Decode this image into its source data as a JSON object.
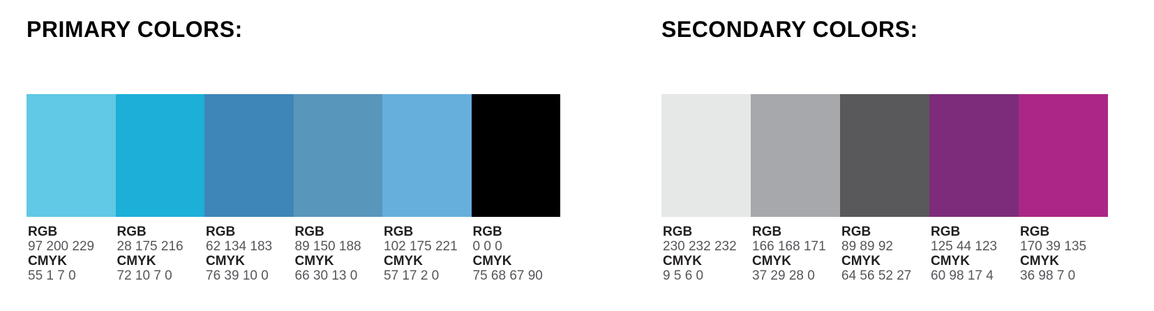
{
  "sections": [
    {
      "title": "PRIMARY COLORS:",
      "rgb_label": "RGB",
      "cmyk_label": "CMYK",
      "swatches": [
        {
          "hex": "#61C8E5",
          "rgb": "97 200 229",
          "cmyk": "55 1 7 0"
        },
        {
          "hex": "#1CAFD8",
          "rgb": "28 175 216",
          "cmyk": "72 10 7 0"
        },
        {
          "hex": "#3E86B7",
          "rgb": "62 134 183",
          "cmyk": "76 39 10 0"
        },
        {
          "hex": "#5996BC",
          "rgb": "89 150 188",
          "cmyk": "66 30 13 0"
        },
        {
          "hex": "#66AFDD",
          "rgb": "102 175 221",
          "cmyk": "57 17 2 0"
        },
        {
          "hex": "#000000",
          "rgb": "0 0 0",
          "cmyk": "75 68 67 90"
        }
      ]
    },
    {
      "title": "SECONDARY COLORS:",
      "rgb_label": "RGB",
      "cmyk_label": "CMYK",
      "swatches": [
        {
          "hex": "#E6E8E8",
          "rgb": "230 232 232",
          "cmyk": "9 5 6 0"
        },
        {
          "hex": "#A6A8AB",
          "rgb": "166 168 171",
          "cmyk": "37 29 28 0"
        },
        {
          "hex": "#59595C",
          "rgb": "89 89 92",
          "cmyk": "64 56 52 27"
        },
        {
          "hex": "#7D2C7B",
          "rgb": "125 44 123",
          "cmyk": "60 98 17 4"
        },
        {
          "hex": "#AA2787",
          "rgb": "170 39 135",
          "cmyk": "36 98 7 0"
        }
      ]
    }
  ]
}
